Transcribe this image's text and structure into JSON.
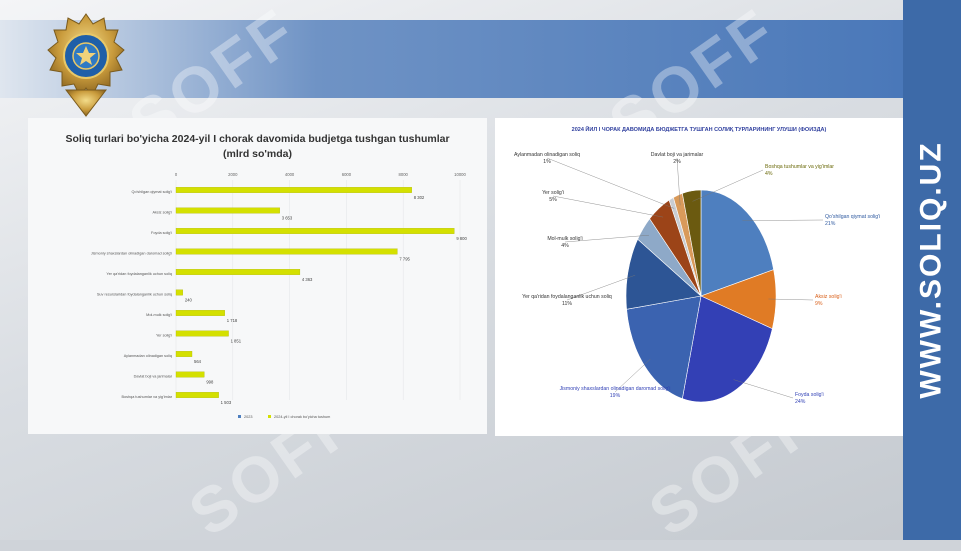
{
  "site": "WWW.SOLIQ.UZ",
  "emblem": {
    "text": "DAVLAT SOLIQ QO'MITASI"
  },
  "watermark": "SOFF",
  "colors": {
    "accent_blue": "#3d6aa8",
    "bar_yellow": "#d4e000",
    "title_blue": "#2f3f9e"
  },
  "chart_data": [
    {
      "type": "bar",
      "title": "Soliq turlari bo'yicha 2024-yil I chorak davomida budjetga tushgan tushumlar",
      "subtitle": "(mlrd so'mda)",
      "xlim": [
        0,
        10000
      ],
      "ticks": [
        "0",
        "2000",
        "4000",
        "6000",
        "8000",
        "10000"
      ],
      "categories": [
        "Qo'shilgan qiymat solig'i",
        "Aksiz solig'i",
        "Foyda solig'i",
        "Jismoniy shaxslardan olinadigan daromad solig'i",
        "Yer qa'ridan foydalanganlik uchun soliq",
        "Suv resurslaridan foydalanganlik uchun soliq",
        "Mol-mulk solig'i",
        "Yer solig'i",
        "Aylanmadan olinadigan soliq",
        "Davlat boji va jarimalar",
        "Boshqa tushumlar va yig'imlar"
      ],
      "values": [
        8302,
        3653,
        9800,
        7795,
        4363,
        240,
        1718,
        1851,
        564,
        998,
        1503
      ],
      "value_labels": [
        "8 302",
        "3 653",
        "9 800",
        "7 795",
        "4 363",
        "240",
        "1 718",
        "1 851",
        "564",
        "998",
        "1 503"
      ],
      "legend": [
        "2023",
        "2024-yil I chorak bo'yicha tushum"
      ]
    },
    {
      "type": "pie",
      "title": "2024 ЙИЛ I ЧОРАК ДАВОМИДА БЮДЖЕТГА ТУШГАН СОЛИҚ ТУРЛАРИНИНГ УЛУШИ (ФОИЗДА)",
      "slices": [
        {
          "label": "Qo'shilgan qiymat solig'i",
          "percent": 21,
          "pct_label": "21%",
          "color": "#4e7fbf"
        },
        {
          "label": "Aksiz solig'i",
          "percent": 9,
          "pct_label": "9%",
          "color": "#e07b25"
        },
        {
          "label": "Foyda solig'i",
          "percent": 24,
          "pct_label": "24%",
          "color": "#3340b5"
        },
        {
          "label": "Jismoniy shaxslardan olinadigan daromad solig'i",
          "percent": 19,
          "pct_label": "19%",
          "color": "#3b63b0"
        },
        {
          "label": "Yer qa'ridan foydalanganlik uchun soliq",
          "percent": 11,
          "pct_label": "11%",
          "color": "#2d5595"
        },
        {
          "label": "Mol-mulk solig'i",
          "percent": 4,
          "pct_label": "4%",
          "color": "#8ea9c8"
        },
        {
          "label": "Yer solig'i",
          "percent": 5,
          "pct_label": "5%",
          "color": "#9c4418"
        },
        {
          "label": "Aylanmadan olinadigan soliq",
          "percent": 1,
          "pct_label": "1%",
          "color": "#c9cdd3"
        },
        {
          "label": "Davlat boji va jarimalar",
          "percent": 2,
          "pct_label": "2%",
          "color": "#d99a5a"
        },
        {
          "label": "Boshqa tushumlar va yig'imlar",
          "percent": 4,
          "pct_label": "4%",
          "color": "#6b5a10"
        }
      ]
    }
  ]
}
